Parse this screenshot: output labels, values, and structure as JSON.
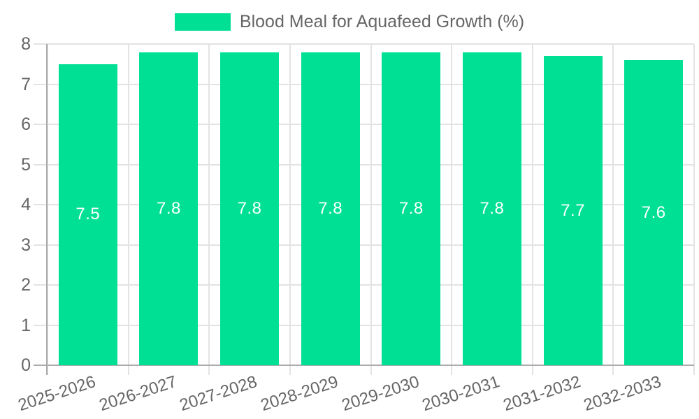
{
  "legend": {
    "label": "Blood Meal for Aquafeed Growth (%)"
  },
  "chart_data": {
    "type": "bar",
    "title": "Blood Meal for Aquafeed Growth (%)",
    "categories": [
      "2025-2026",
      "2026-2027",
      "2027-2028",
      "2028-2029",
      "2029-2030",
      "2030-2031",
      "2031-2032",
      "2032-2033"
    ],
    "values": [
      7.5,
      7.8,
      7.8,
      7.8,
      7.8,
      7.8,
      7.7,
      7.6
    ],
    "value_labels": [
      "7.5",
      "7.8",
      "7.8",
      "7.8",
      "7.8",
      "7.8",
      "7.7",
      "7.6"
    ],
    "xlabel": "",
    "ylabel": "",
    "ylim": [
      0,
      8
    ],
    "yticks": [
      0,
      1,
      2,
      3,
      4,
      5,
      6,
      7,
      8
    ],
    "grid": true,
    "legend_position": "top",
    "x_label_rotation_deg": -18,
    "colors": {
      "bar": "#00E095",
      "value_label_text": "#ffffff",
      "axis_text": "#666666",
      "grid_line": "#e3e3e3",
      "axis_line": "#ababab",
      "background": "#ffffff"
    }
  }
}
